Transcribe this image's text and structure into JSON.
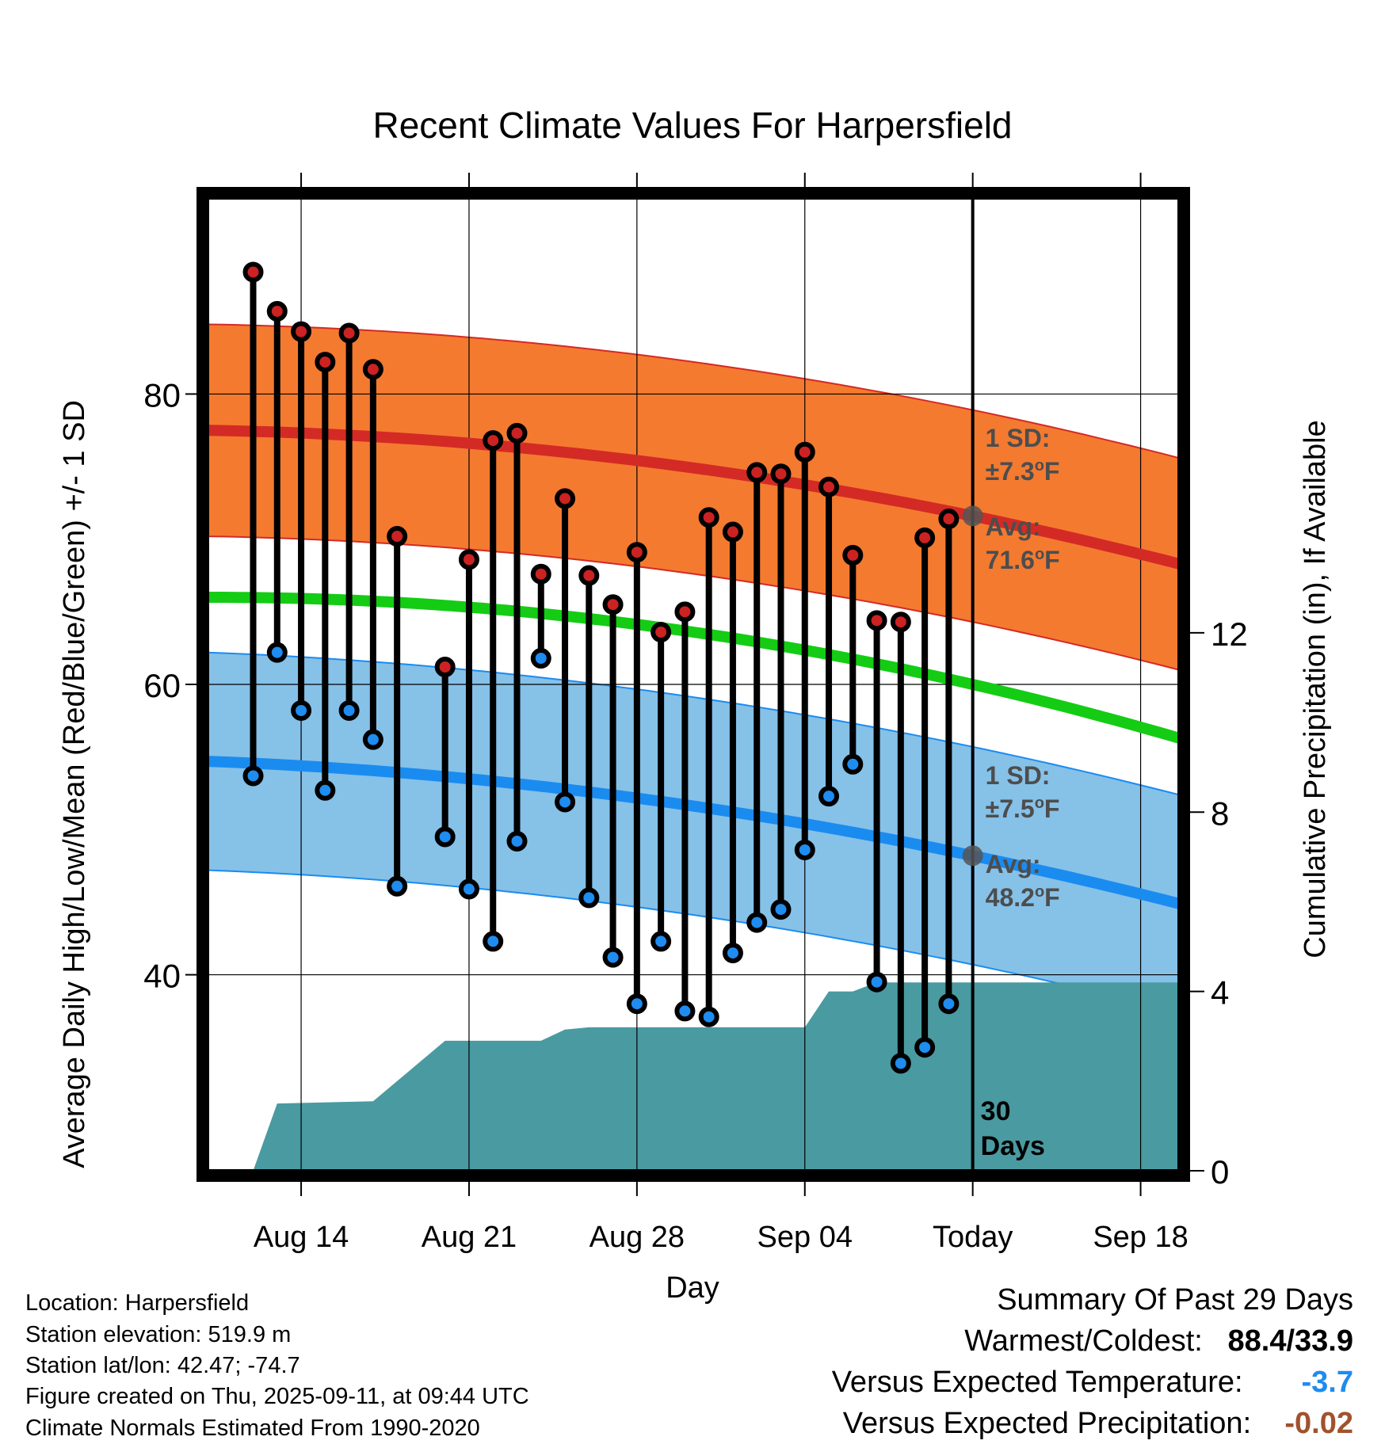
{
  "chart_data": {
    "type": "line",
    "title": "Recent Climate Values For Harpersfield",
    "xlabel": "Day",
    "ylabel": "Average Daily High/Low/Mean (Red/Blue/Green) +/- 1 SD",
    "y2label": "Cumulative Precipitation (in), If Available",
    "x_ticks": [
      "Aug 14",
      "Aug 21",
      "Aug 28",
      "Sep 04",
      "Today",
      "Sep 18"
    ],
    "x_tick_days": [
      3,
      10,
      17,
      24,
      31,
      38
    ],
    "xlim": [
      -0.9,
      39.6
    ],
    "ylim": [
      26.5,
      93.5
    ],
    "y_ticks": [
      40,
      60,
      80
    ],
    "y2lim": [
      0,
      21.7
    ],
    "y2_ticks": [
      0,
      4,
      8,
      12
    ],
    "days": [
      1,
      2,
      3,
      4,
      5,
      6,
      7,
      8,
      9,
      10,
      11,
      12,
      13,
      14,
      15,
      16,
      17,
      18,
      19,
      20,
      21,
      22,
      23,
      24,
      25,
      26,
      27,
      28,
      29,
      30
    ],
    "highs": [
      88.4,
      85.7,
      84.3,
      82.2,
      84.2,
      81.7,
      70.2,
      null,
      61.2,
      68.6,
      76.8,
      77.3,
      67.6,
      72.8,
      67.5,
      65.5,
      69.1,
      63.6,
      65.0,
      71.5,
      70.5,
      74.6,
      74.5,
      76.0,
      73.6,
      68.9,
      64.4,
      64.3,
      70.1,
      71.4
    ],
    "lows": [
      53.7,
      62.2,
      58.2,
      52.7,
      58.2,
      56.2,
      46.1,
      null,
      49.5,
      45.9,
      42.3,
      49.2,
      61.8,
      51.9,
      45.3,
      41.2,
      38.0,
      42.3,
      37.5,
      37.1,
      41.5,
      43.6,
      44.5,
      48.6,
      52.3,
      54.5,
      39.5,
      33.9,
      35.0,
      38.0
    ],
    "normal_high_avg": [
      77.5,
      71.6,
      68.3
    ],
    "normal_high_sd": 7.3,
    "normal_mean": [
      66.0,
      60.0,
      56.3
    ],
    "normal_low_avg": [
      54.7,
      48.2,
      44.9
    ],
    "normal_low_sd": 7.5,
    "normal_days": [
      -0.9,
      31,
      39.6
    ],
    "precip_cum": [
      [
        1,
        0
      ],
      [
        2,
        1.5
      ],
      [
        6,
        1.55
      ],
      [
        9,
        2.9
      ],
      [
        13,
        2.9
      ],
      [
        14,
        3.15
      ],
      [
        15,
        3.2
      ],
      [
        24,
        3.2
      ],
      [
        25,
        4.0
      ],
      [
        26,
        4.0
      ],
      [
        27,
        4.2
      ],
      [
        39.6,
        4.2
      ]
    ],
    "today_day": 31,
    "precip_days_label": "30\nDays",
    "annotations": {
      "high_sd_label": "1 SD:",
      "high_sd_value": "±7.3",
      "high_avg_label": "Avg:",
      "high_avg_value": "71.6",
      "low_sd_label": "1 SD:",
      "low_sd_value": "±7.5",
      "low_avg_label": "Avg:",
      "low_avg_value": "48.2",
      "unit_sup": "o",
      "unit": "F",
      "days_num": "30",
      "days_word": "Days"
    },
    "colors": {
      "high_band": "#f47a30",
      "high_line": "#d42a25",
      "mean_line": "#14cc14",
      "low_band": "#86c1e8",
      "low_line": "#1a8cf0",
      "precip": "#4a9aa2",
      "high_dot": "#cc2222",
      "low_dot": "#1e8cf0"
    }
  },
  "footer": {
    "location": "Location: Harpersfield",
    "elevation": "Station elevation: 519.9 m",
    "latlon": "Station lat/lon: 42.47; -74.7",
    "created": "Figure created on Thu, 2025-09-11, at 09:44 UTC",
    "normals": "Climate Normals Estimated From 1990-2020"
  },
  "summary": {
    "title": "Summary Of Past 29 Days",
    "warmest_label": "Warmest/Coldest:",
    "warmest_value": "88.4/33.9",
    "temp_label": "Versus Expected Temperature:",
    "temp_value": "-3.7",
    "temp_color": "#1e8cf0",
    "precip_label": "Versus Expected Precipitation:",
    "precip_value": "-0.02",
    "precip_color": "#a0522d"
  }
}
